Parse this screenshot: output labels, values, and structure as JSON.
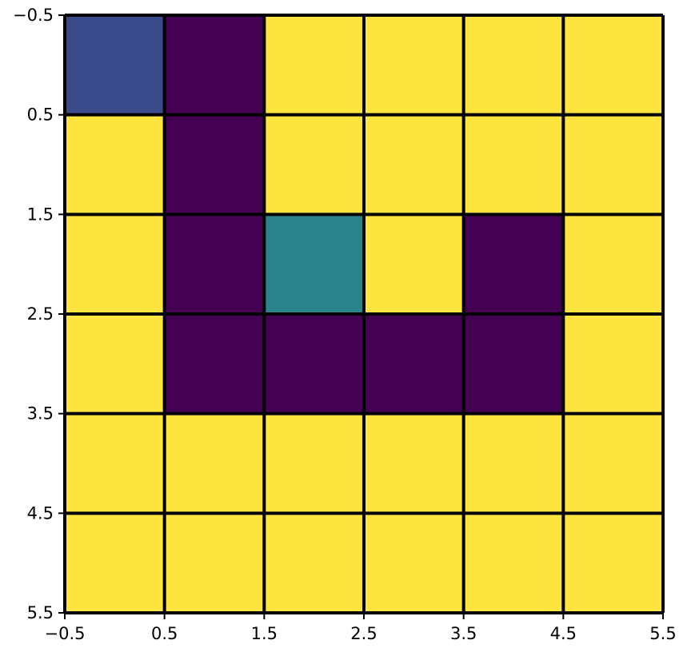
{
  "chart_data": {
    "type": "heatmap",
    "title": "",
    "xlabel": "",
    "ylabel": "",
    "xlim": [
      -0.5,
      5.5
    ],
    "ylim": [
      5.5,
      -0.5
    ],
    "x_ticks": [
      "−0.5",
      "0.5",
      "1.5",
      "2.5",
      "3.5",
      "4.5",
      "5.5"
    ],
    "y_ticks": [
      "−0.5",
      "0.5",
      "1.5",
      "2.5",
      "3.5",
      "4.5",
      "5.5"
    ],
    "grid": true,
    "colormap": "viridis",
    "legend": "none",
    "values": [
      [
        0.2,
        0,
        1,
        1,
        1,
        1
      ],
      [
        1,
        0,
        1,
        1,
        1,
        1
      ],
      [
        1,
        0,
        0.5,
        1,
        0,
        1
      ],
      [
        1,
        0,
        0,
        0,
        0,
        1
      ],
      [
        1,
        1,
        1,
        1,
        1,
        1
      ],
      [
        1,
        1,
        1,
        1,
        1,
        1
      ]
    ],
    "colors": {
      "0": "#440154",
      "0.2": "#3b4a8a",
      "0.5": "#2b838c",
      "1": "#fde43e"
    }
  }
}
